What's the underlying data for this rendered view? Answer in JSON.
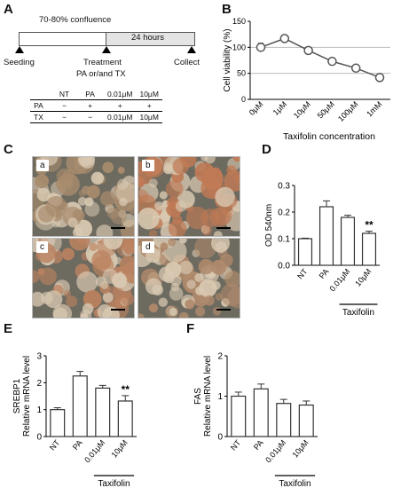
{
  "panels": {
    "A": {
      "letter": "A",
      "confluence": "70-80% confluence",
      "duration": "24 hours",
      "seeding": "Seeding",
      "treatment": "Treatment",
      "treatment_sub": "PA or/and TX",
      "collect": "Collect",
      "table": {
        "headers": [
          "",
          "NT",
          "PA",
          "0.01μM",
          "10μM"
        ],
        "rows": [
          {
            "label": "PA",
            "cells": [
              "−",
              "+",
              "+",
              "+"
            ]
          },
          {
            "label": "TX",
            "cells": [
              "−",
              "−",
              "0.01μM",
              "10μM"
            ]
          }
        ]
      }
    },
    "B": {
      "letter": "B"
    },
    "C": {
      "letter": "C",
      "images": [
        {
          "tag": "a",
          "tint": "#a98c6e"
        },
        {
          "tag": "b",
          "tint": "#c07a55"
        },
        {
          "tag": "c",
          "tint": "#bb8260"
        },
        {
          "tag": "d",
          "tint": "#b08a6c"
        }
      ]
    },
    "D": {
      "letter": "D"
    },
    "E": {
      "letter": "E"
    },
    "F": {
      "letter": "F"
    }
  },
  "chart_data": [
    {
      "panel": "B",
      "type": "line",
      "ylabel": "Cell viability (%)",
      "xlabel": "Taxifolin concentration",
      "categories": [
        "0μM",
        "1μM",
        "10μM",
        "50μM",
        "100μM",
        "1mM"
      ],
      "values": [
        100,
        117,
        94,
        73,
        60,
        42
      ],
      "errors": [
        8,
        4,
        5,
        3,
        6,
        3
      ],
      "ylim": [
        0,
        150
      ],
      "yticks": [
        0,
        50,
        100,
        150
      ],
      "reference_lines": [
        50,
        100
      ]
    },
    {
      "panel": "D",
      "type": "bar",
      "ylabel": "OD 540nm",
      "categories": [
        "NT",
        "PA",
        "0.01μM",
        "10μM"
      ],
      "values": [
        0.1,
        0.22,
        0.18,
        0.12
      ],
      "errors": [
        0.002,
        0.022,
        0.008,
        0.008
      ],
      "ylim": [
        0,
        0.3
      ],
      "yticks": [
        0.0,
        0.1,
        0.2,
        0.3
      ],
      "ytick_labels": [
        "0.0",
        "0.1",
        "0.2",
        "0.3"
      ],
      "significance": {
        "index": 3,
        "label": "**"
      },
      "group_label": "Taxifolin",
      "group_span": [
        2,
        3
      ]
    },
    {
      "panel": "E",
      "type": "bar",
      "ylabel": "Relative mRNA level",
      "ylabel2": "SREBP1",
      "categories": [
        "NT",
        "PA",
        "0.01μM",
        "10μM"
      ],
      "values": [
        1.0,
        2.25,
        1.8,
        1.32
      ],
      "errors": [
        0.07,
        0.17,
        0.1,
        0.2
      ],
      "ylim": [
        0,
        3
      ],
      "yticks": [
        0,
        1,
        2,
        3
      ],
      "ytick_labels": [
        "0",
        "1",
        "2",
        "3"
      ],
      "significance": {
        "index": 3,
        "label": "**"
      },
      "group_label": "Taxifolin",
      "group_span": [
        2,
        3
      ]
    },
    {
      "panel": "F",
      "type": "bar",
      "ylabel": "Relative mRNA level",
      "ylabel2": "FAS",
      "categories": [
        "NT",
        "PA",
        "0.01μM",
        "10μM"
      ],
      "values": [
        1.0,
        1.18,
        0.82,
        0.78
      ],
      "errors": [
        0.1,
        0.12,
        0.1,
        0.1
      ],
      "ylim": [
        0,
        2
      ],
      "yticks": [
        0,
        1,
        2
      ],
      "ytick_labels": [
        "0",
        "1",
        "2"
      ],
      "group_label": "Taxifolin",
      "group_span": [
        2,
        3
      ]
    }
  ]
}
